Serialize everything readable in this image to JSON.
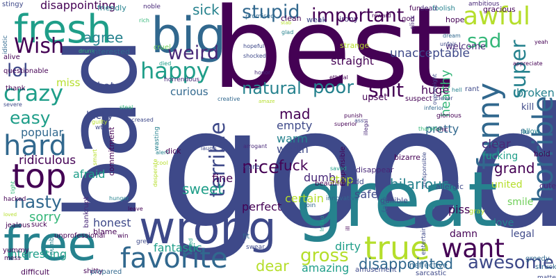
{
  "palette": {
    "dark_purple": "#440154",
    "purple": "#482878",
    "indigo": "#3e4989",
    "blue": "#31688e",
    "teal": "#26828e",
    "green_teal": "#1f9e89",
    "green": "#35b779",
    "light_green": "#6ece58",
    "yellow_green": "#b5de2b",
    "yellow": "#fde725"
  },
  "words": [
    {
      "text": "good",
      "color": "#3e4989"
    },
    {
      "text": "best",
      "color": "#440154"
    },
    {
      "text": "bad",
      "color": "#3e4989"
    },
    {
      "text": "great",
      "color": "#26828e"
    },
    {
      "text": "big",
      "color": "#31688e"
    },
    {
      "text": "fresh",
      "color": "#1f9e89"
    },
    {
      "text": "wrong",
      "color": "#3e4989"
    },
    {
      "text": "free",
      "color": "#26828e"
    },
    {
      "text": "horrible",
      "color": "#31688e"
    },
    {
      "text": "funny",
      "color": "#31688e"
    },
    {
      "text": "terrible",
      "color": "#3e4989"
    },
    {
      "text": "favorite",
      "color": "#31688e"
    },
    {
      "text": "true",
      "color": "#b5de2b"
    },
    {
      "text": "want",
      "color": "#440154"
    },
    {
      "text": "top",
      "color": "#440154"
    },
    {
      "text": "hard",
      "color": "#31688e"
    },
    {
      "text": "crazy",
      "color": "#1f9e89"
    },
    {
      "text": "happy",
      "color": "#1f9e89"
    },
    {
      "text": "awful",
      "color": "#b5de2b"
    },
    {
      "text": "sad",
      "color": "#35b779"
    },
    {
      "text": "stupid",
      "color": "#31688e"
    },
    {
      "text": "important",
      "color": "#440154"
    },
    {
      "text": "Wish",
      "color": "#440154"
    },
    {
      "text": "lol",
      "color": "#3e4989"
    },
    {
      "text": "weird",
      "color": "#482878"
    },
    {
      "text": "agree",
      "color": "#26828e"
    },
    {
      "text": "super",
      "color": "#26828e"
    },
    {
      "text": "unacceptable",
      "color": "#3e4989"
    },
    {
      "text": "welcome",
      "color": "#482878"
    },
    {
      "text": "natural",
      "color": "#26828e"
    },
    {
      "text": "poor",
      "color": "#26828e"
    },
    {
      "text": "shit",
      "color": "#440154"
    },
    {
      "text": "healthy",
      "color": "#35b779"
    },
    {
      "text": "easy",
      "color": "#1f9e89"
    },
    {
      "text": "nice",
      "color": "#440154"
    },
    {
      "text": "nasty",
      "color": "#31688e"
    },
    {
      "text": "awesome",
      "color": "#3e4989"
    },
    {
      "text": "gross",
      "color": "#b5de2b"
    },
    {
      "text": "dear",
      "color": "#b5de2b"
    },
    {
      "text": "disappointed",
      "color": "#31688e"
    },
    {
      "text": "hilarious",
      "color": "#26828e"
    },
    {
      "text": "sweet",
      "color": "#1f9e89"
    },
    {
      "text": "sorry",
      "color": "#35b779"
    },
    {
      "text": "fantastic",
      "color": "#1f9e89"
    },
    {
      "text": "broken",
      "color": "#26828e"
    },
    {
      "text": "grand",
      "color": "#440154"
    },
    {
      "text": "disappointing",
      "color": "#440154"
    },
    {
      "text": "popular",
      "color": "#31688e"
    },
    {
      "text": "ridiculous",
      "color": "#440154"
    },
    {
      "text": "afraid",
      "color": "#1f9e89"
    },
    {
      "text": "honest",
      "color": "#3e4989"
    },
    {
      "text": "interesting",
      "color": "#1f9e89"
    },
    {
      "text": "sick",
      "color": "#26828e"
    },
    {
      "text": "miss",
      "color": "#b5de2b"
    },
    {
      "text": "hate",
      "color": "#3e4989"
    },
    {
      "text": "curious",
      "color": "#31688e"
    },
    {
      "text": "lucky",
      "color": "#3e4989"
    },
    {
      "text": "huge",
      "color": "#440154"
    },
    {
      "text": "straight",
      "color": "#440154"
    },
    {
      "text": "mad",
      "color": "#440154"
    },
    {
      "text": "empty",
      "color": "#3e4989"
    },
    {
      "text": "warm",
      "color": "#26828e"
    },
    {
      "text": "worth",
      "color": "#3e4989"
    },
    {
      "text": "fuck",
      "color": "#440154"
    },
    {
      "text": "dumb",
      "color": "#482878"
    },
    {
      "text": "certain",
      "color": "#b5de2b"
    },
    {
      "text": "pretty",
      "color": "#31688e"
    },
    {
      "text": "clear",
      "color": "#482878"
    },
    {
      "text": "fucking",
      "color": "#1f9e89"
    },
    {
      "text": "fine",
      "color": "#440154"
    },
    {
      "text": "stop",
      "color": "#b5de2b"
    },
    {
      "text": "safe",
      "color": "#3e4989"
    },
    {
      "text": "odd",
      "color": "#3e4989"
    },
    {
      "text": "perfect",
      "color": "#440154"
    },
    {
      "text": "amazing",
      "color": "#1f9e89"
    },
    {
      "text": "dirty",
      "color": "#1f9e89"
    },
    {
      "text": "united",
      "color": "#b5de2b"
    },
    {
      "text": "piss",
      "color": "#440154"
    },
    {
      "text": "love",
      "color": "#26828e"
    },
    {
      "text": "legal",
      "color": "#3e4989"
    },
    {
      "text": "damn",
      "color": "#440154"
    },
    {
      "text": "smile",
      "color": "#6ece58"
    },
    {
      "text": "cute",
      "color": "#482878"
    },
    {
      "text": "kill",
      "color": "#3e4989"
    },
    {
      "text": "flu",
      "color": "#31688e"
    },
    {
      "text": "bold",
      "color": "#440154"
    },
    {
      "text": "allow",
      "color": "#26828e"
    },
    {
      "text": "stingy",
      "color": "#3e4989"
    },
    {
      "text": "idiotic",
      "color": "#31688e"
    },
    {
      "text": "alive",
      "color": "#440154"
    },
    {
      "text": "questionable",
      "color": "#440154"
    },
    {
      "text": "thank",
      "color": "#440154"
    },
    {
      "text": "friendly",
      "color": "#26828e"
    },
    {
      "text": "noble",
      "color": "#482878"
    },
    {
      "text": "honor",
      "color": "#482878"
    },
    {
      "text": "rich",
      "color": "#35b779"
    },
    {
      "text": "drunk",
      "color": "#35b779"
    },
    {
      "text": "interested",
      "color": "#31688e"
    },
    {
      "text": "cruel",
      "color": "#6ece58"
    },
    {
      "text": "died",
      "color": "#1f9e89"
    },
    {
      "text": "horrendous",
      "color": "#482878"
    },
    {
      "text": "promised",
      "color": "#31688e"
    },
    {
      "text": "clean",
      "color": "#440154"
    },
    {
      "text": "weak",
      "color": "#3e4989"
    },
    {
      "text": "irony",
      "color": "#482878"
    },
    {
      "text": "reward",
      "color": "#440154"
    },
    {
      "text": "glad",
      "color": "#26828e"
    },
    {
      "text": "hopeful",
      "color": "#3e4989"
    },
    {
      "text": "shocked",
      "color": "#3e4989"
    },
    {
      "text": "ethical",
      "color": "#440154"
    },
    {
      "text": "strange",
      "color": "#b5de2b"
    },
    {
      "text": "fun",
      "color": "#440154"
    },
    {
      "text": "dead",
      "color": "#482878"
    },
    {
      "text": "god",
      "color": "#440154"
    },
    {
      "text": "slick",
      "color": "#482878"
    },
    {
      "text": "foolish",
      "color": "#26828e"
    },
    {
      "text": "ambitious",
      "color": "#482878"
    },
    {
      "text": "gracious",
      "color": "#440154"
    },
    {
      "text": "hope",
      "color": "#440154"
    },
    {
      "text": "dream",
      "color": "#31688e"
    },
    {
      "text": "unfair",
      "color": "#3e4989"
    },
    {
      "text": "yeah",
      "color": "#440154"
    },
    {
      "text": "appreciate",
      "color": "#440154"
    },
    {
      "text": "hell",
      "color": "#26828e"
    },
    {
      "text": "rant",
      "color": "#3e4989"
    },
    {
      "text": "upset",
      "color": "#440154"
    },
    {
      "text": "suspect",
      "color": "#440154"
    },
    {
      "text": "clever",
      "color": "#3e4989"
    },
    {
      "text": "inferior",
      "color": "#31688e"
    },
    {
      "text": "superior",
      "color": "#440154"
    },
    {
      "text": "punish",
      "color": "#440154"
    },
    {
      "text": "glorious",
      "color": "#440154"
    },
    {
      "text": "chic",
      "color": "#440154"
    },
    {
      "text": "thankful",
      "color": "#35b779"
    },
    {
      "text": "responsible",
      "color": "#440154"
    },
    {
      "text": "irresponsible",
      "color": "#3e4989"
    },
    {
      "text": "illegal",
      "color": "#482878"
    },
    {
      "text": "steal",
      "color": "#35b779"
    },
    {
      "text": "increased",
      "color": "#3e4989"
    },
    {
      "text": "wtf",
      "color": "#3e4989"
    },
    {
      "text": "guilty",
      "color": "#b5de2b"
    },
    {
      "text": "severe",
      "color": "#3e4989"
    },
    {
      "text": "smart",
      "color": "#b5de2b"
    },
    {
      "text": "commitment",
      "color": "#440154"
    },
    {
      "text": "wasting",
      "color": "#26828e"
    },
    {
      "text": "alert",
      "color": "#26828e"
    },
    {
      "text": "dick",
      "color": "#440154"
    },
    {
      "text": "laugh",
      "color": "#3e4989"
    },
    {
      "text": "arrogant",
      "color": "#482878"
    },
    {
      "text": "cool",
      "color": "#b5de2b"
    },
    {
      "text": "desperate",
      "color": "#b5de2b"
    },
    {
      "text": "secure",
      "color": "#3e4989"
    },
    {
      "text": "saved",
      "color": "#1f9e89"
    },
    {
      "text": "disappear",
      "color": "#482878"
    },
    {
      "text": "bizarre",
      "color": "#440154"
    },
    {
      "text": "allergic",
      "color": "#3e4989"
    },
    {
      "text": "hacked",
      "color": "#440154"
    },
    {
      "text": "bankrupt",
      "color": "#482878"
    },
    {
      "text": "hunger",
      "color": "#26828e"
    },
    {
      "text": "leave",
      "color": "#440154"
    },
    {
      "text": "beautiful",
      "color": "#440154"
    },
    {
      "text": "innovative",
      "color": "#31688e"
    },
    {
      "text": "join",
      "color": "#31688e"
    },
    {
      "text": "gullible",
      "color": "#3e4989"
    },
    {
      "text": "jealous",
      "color": "#440154"
    },
    {
      "text": "blame",
      "color": "#440154"
    },
    {
      "text": "suck",
      "color": "#440154"
    },
    {
      "text": "unprofessional",
      "color": "#440154"
    },
    {
      "text": "win",
      "color": "#440154"
    },
    {
      "text": "grey",
      "color": "#3e4989"
    },
    {
      "text": "fired",
      "color": "#1f9e89"
    },
    {
      "text": "fit",
      "color": "#31688e"
    },
    {
      "text": "swear",
      "color": "#3e4989"
    },
    {
      "text": "lmfao",
      "color": "#1f9e89"
    },
    {
      "text": "fake",
      "color": "#31688e"
    },
    {
      "text": "entertaining",
      "color": "#3e4989"
    },
    {
      "text": "gray",
      "color": "#b5de2b"
    },
    {
      "text": "ill",
      "color": "#440154"
    },
    {
      "text": "yummy",
      "color": "#440154"
    },
    {
      "text": "mess",
      "color": "#440154"
    },
    {
      "text": "numb",
      "color": "#26828e"
    },
    {
      "text": "difficult",
      "color": "#440154"
    },
    {
      "text": "shitty",
      "color": "#440154"
    },
    {
      "text": "prepared",
      "color": "#31688e"
    },
    {
      "text": "amusement",
      "color": "#3e4989"
    },
    {
      "text": "ineffective",
      "color": "#31688e"
    },
    {
      "text": "sarcastic",
      "color": "#3e4989"
    },
    {
      "text": "greedy",
      "color": "#31688e"
    },
    {
      "text": "struck",
      "color": "#31688e"
    },
    {
      "text": "matter",
      "color": "#3e4989"
    },
    {
      "text": "loved",
      "color": "#b5de2b"
    },
    {
      "text": "tight",
      "color": "#35b779"
    },
    {
      "text": "creative",
      "color": "#31688e"
    },
    {
      "text": "ass",
      "color": "#3e4989"
    },
    {
      "text": "amaze",
      "color": "#b5de2b"
    },
    {
      "text": "overweight",
      "color": "#3e4989"
    },
    {
      "text": "stab",
      "color": "#b5de2b"
    }
  ]
}
